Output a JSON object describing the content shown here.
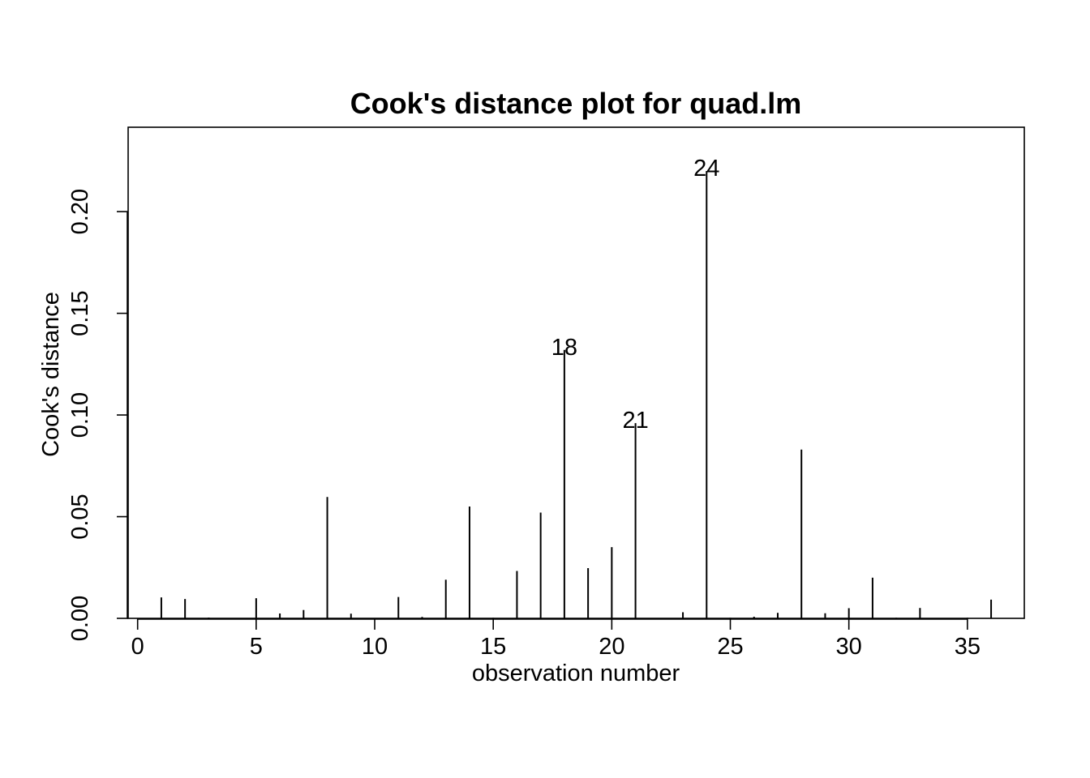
{
  "chart_data": {
    "type": "bar",
    "title": "Cook's distance plot for quad.lm",
    "xlabel": "observation number",
    "ylabel": "Cook's distance",
    "xlim": [
      -0.4,
      37.4
    ],
    "ylim": [
      0,
      0.2415
    ],
    "x_ticks": [
      "0",
      "5",
      "10",
      "15",
      "20",
      "25",
      "30",
      "35"
    ],
    "y_ticks": [
      "0.00",
      "0.05",
      "0.10",
      "0.15",
      "0.20"
    ],
    "grid": false,
    "legend": "none",
    "x": [
      1,
      2,
      3,
      4,
      5,
      6,
      7,
      8,
      9,
      10,
      11,
      12,
      13,
      14,
      15,
      16,
      17,
      18,
      19,
      20,
      21,
      22,
      23,
      24,
      25,
      26,
      27,
      28,
      29,
      30,
      31,
      32,
      33,
      34,
      35,
      36
    ],
    "values": [
      0.0103,
      0.0095,
      0.0004,
      0.0002,
      0.0099,
      0.0024,
      0.0041,
      0.0597,
      0.0023,
      0.0001,
      0.0105,
      0.0007,
      0.019,
      0.055,
      0.0003,
      0.0233,
      0.052,
      0.132,
      0.0247,
      0.035,
      0.096,
      0.0002,
      0.003,
      0.22,
      0.0003,
      0.0008,
      0.0027,
      0.083,
      0.0025,
      0.005,
      0.02,
      0.0003,
      0.0051,
      0.0002,
      0.0003,
      0.0092
    ],
    "annotations": [
      {
        "x": 18,
        "text": "18"
      },
      {
        "x": 21,
        "text": "21"
      },
      {
        "x": 24,
        "text": "24"
      }
    ]
  }
}
